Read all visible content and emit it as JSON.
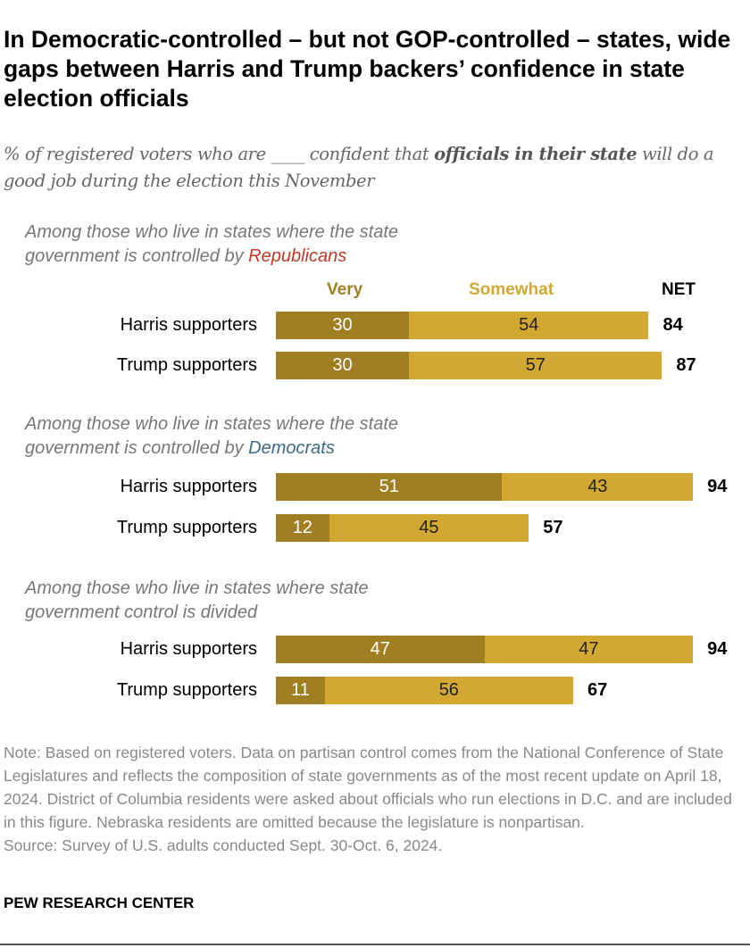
{
  "title": "In Democratic-controlled – but not GOP-controlled – states, wide gaps between Harris and Trump backers’ confidence in state election officials",
  "subtitle": {
    "pre": "% of registered voters who are ____ confident that ",
    "bold": "officials in their state",
    "post": " will do a good job during the election this November"
  },
  "chart_data": {
    "type": "bar",
    "orientation": "horizontal-stacked",
    "xlim": [
      0,
      100
    ],
    "legend": {
      "very": "Very",
      "somewhat": "Somewhat",
      "net": "NET"
    },
    "colors": {
      "very": "#a07e22",
      "somewhat": "#d2a832",
      "republicans": "#bf3927",
      "democrats": "#3d6a8a"
    },
    "groups": [
      {
        "heading_pre": "Among those who live in states where the state government is controlled by ",
        "heading_party": "Republicans",
        "party": "republicans",
        "rows": [
          {
            "label": "Harris supporters",
            "very": 30,
            "somewhat": 54,
            "net": 84
          },
          {
            "label": "Trump supporters",
            "very": 30,
            "somewhat": 57,
            "net": 87
          }
        ]
      },
      {
        "heading_pre": "Among those who live in states where the state government is controlled by ",
        "heading_party": "Democrats",
        "party": "democrats",
        "rows": [
          {
            "label": "Harris supporters",
            "very": 51,
            "somewhat": 43,
            "net": 94
          },
          {
            "label": "Trump supporters",
            "very": 12,
            "somewhat": 45,
            "net": 57
          }
        ]
      },
      {
        "heading_pre": "Among those who live in states where state government control is divided",
        "heading_party": "",
        "party": "",
        "rows": [
          {
            "label": "Harris supporters",
            "very": 47,
            "somewhat": 47,
            "net": 94
          },
          {
            "label": "Trump supporters",
            "very": 11,
            "somewhat": 56,
            "net": 67
          }
        ]
      }
    ]
  },
  "note": "Note: Based on registered voters. Data on partisan control comes from the National Conference of State Legislatures and reflects the composition of state governments as of the most recent update on April 18, 2024. District of Columbia residents were asked about officials who run elections in D.C. and are included in this figure. Nebraska residents are omitted because the legislature is nonpartisan.",
  "source": "Source: Survey of U.S. adults conducted Sept. 30-Oct. 6, 2024.",
  "brand": "PEW RESEARCH CENTER"
}
